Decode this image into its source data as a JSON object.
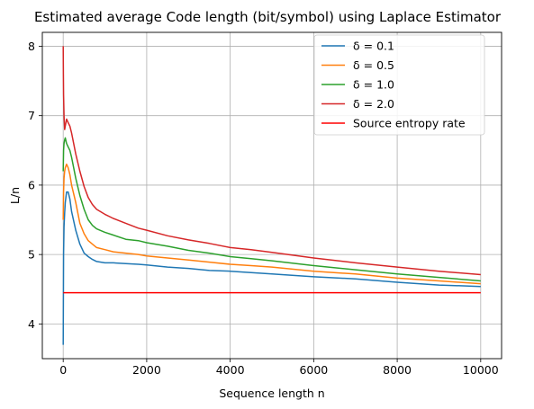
{
  "chart_data": {
    "type": "line",
    "title": "Estimated average Code length (bit/symbol) using Laplace Estimator",
    "xlabel": "Sequence length n",
    "ylabel": "L/n",
    "xlim": [
      -500,
      10500
    ],
    "ylim": [
      3.5,
      8.2
    ],
    "xticks": [
      0,
      2000,
      4000,
      6000,
      8000,
      10000
    ],
    "xtick_labels": [
      "0",
      "2000",
      "4000",
      "6000",
      "8000",
      "10000"
    ],
    "yticks": [
      4,
      5,
      6,
      7,
      8
    ],
    "ytick_labels": [
      "4",
      "5",
      "6",
      "7",
      "8"
    ],
    "grid": true,
    "legend_position": "top-right",
    "series": [
      {
        "name": "δ = 0.1",
        "color": "#1f77b4",
        "x": [
          1,
          10,
          20,
          35,
          50,
          80,
          120,
          160,
          200,
          300,
          400,
          500,
          600,
          700,
          800,
          1000,
          1200,
          1500,
          1800,
          2000,
          2500,
          3000,
          3500,
          4000,
          4500,
          5000,
          6000,
          7000,
          8000,
          9000,
          10000
        ],
        "y": [
          3.7,
          5.0,
          5.4,
          5.6,
          5.75,
          5.9,
          5.9,
          5.8,
          5.62,
          5.35,
          5.15,
          5.02,
          4.97,
          4.93,
          4.9,
          4.88,
          4.88,
          4.87,
          4.86,
          4.85,
          4.82,
          4.8,
          4.77,
          4.76,
          4.74,
          4.72,
          4.68,
          4.65,
          4.6,
          4.56,
          4.54
        ]
      },
      {
        "name": "δ = 0.5",
        "color": "#ff7f0e",
        "x": [
          1,
          10,
          20,
          35,
          50,
          80,
          120,
          160,
          200,
          300,
          400,
          500,
          600,
          700,
          800,
          1000,
          1200,
          1500,
          1800,
          2000,
          2500,
          3000,
          3500,
          4000,
          4500,
          5000,
          6000,
          7000,
          8000,
          9000,
          10000
        ],
        "y": [
          5.5,
          5.9,
          6.1,
          6.2,
          6.25,
          6.3,
          6.25,
          6.15,
          6.0,
          5.75,
          5.45,
          5.3,
          5.2,
          5.15,
          5.1,
          5.07,
          5.04,
          5.02,
          5.0,
          4.98,
          4.95,
          4.92,
          4.89,
          4.86,
          4.84,
          4.82,
          4.76,
          4.72,
          4.66,
          4.62,
          4.58
        ]
      },
      {
        "name": "δ = 1.0",
        "color": "#2ca02c",
        "x": [
          1,
          10,
          20,
          35,
          50,
          80,
          120,
          160,
          200,
          300,
          400,
          500,
          600,
          700,
          800,
          1000,
          1200,
          1500,
          1800,
          2000,
          2500,
          3000,
          3500,
          4000,
          4500,
          5000,
          6000,
          7000,
          8000,
          9000,
          10000
        ],
        "y": [
          6.2,
          6.5,
          6.6,
          6.65,
          6.68,
          6.6,
          6.55,
          6.5,
          6.4,
          6.1,
          5.85,
          5.65,
          5.5,
          5.42,
          5.37,
          5.32,
          5.28,
          5.22,
          5.2,
          5.17,
          5.12,
          5.06,
          5.02,
          4.97,
          4.94,
          4.91,
          4.84,
          4.78,
          4.72,
          4.67,
          4.62
        ]
      },
      {
        "name": "δ = 2.0",
        "color": "#d62728",
        "x": [
          1,
          5,
          10,
          20,
          35,
          50,
          80,
          120,
          160,
          200,
          300,
          400,
          500,
          600,
          700,
          800,
          1000,
          1200,
          1500,
          1800,
          2000,
          2500,
          3000,
          3500,
          4000,
          4500,
          5000,
          6000,
          7000,
          8000,
          9000,
          10000
        ],
        "y": [
          8.0,
          7.6,
          7.3,
          7.0,
          6.8,
          6.85,
          6.95,
          6.9,
          6.85,
          6.75,
          6.45,
          6.2,
          5.98,
          5.82,
          5.72,
          5.65,
          5.58,
          5.52,
          5.45,
          5.38,
          5.35,
          5.27,
          5.21,
          5.16,
          5.1,
          5.07,
          5.03,
          4.95,
          4.88,
          4.82,
          4.76,
          4.71
        ]
      },
      {
        "name": "Source entropy rate",
        "color": "#ff0000",
        "x": [
          1,
          10000
        ],
        "y": [
          4.45,
          4.45
        ]
      }
    ]
  }
}
